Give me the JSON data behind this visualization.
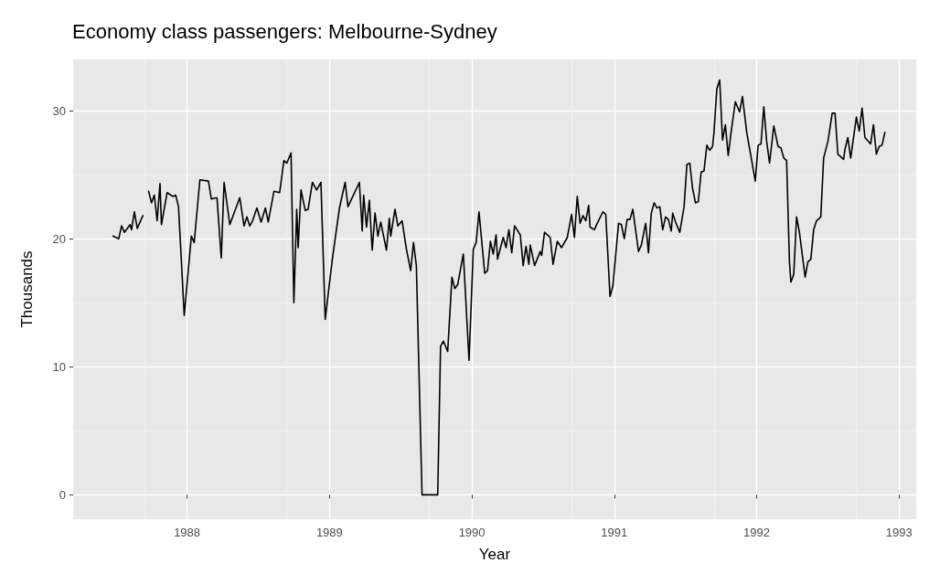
{
  "chart_data": {
    "type": "line",
    "title": "Economy class passengers: Melbourne-Sydney",
    "xlabel": "Year",
    "ylabel": "Thousands",
    "x": [
      1987.48,
      1987.52,
      1987.54,
      1987.56,
      1987.6,
      1987.61,
      1987.63,
      1987.65,
      1987.69,
      1987.71,
      1987.73,
      1987.75,
      1987.77,
      1987.79,
      1987.81,
      1987.82,
      1987.86,
      1987.9,
      1987.92,
      1987.94,
      1987.98,
      1988.03,
      1988.05,
      1988.09,
      1988.15,
      1988.17,
      1988.21,
      1988.24,
      1988.26,
      1988.3,
      1988.37,
      1988.4,
      1988.42,
      1988.44,
      1988.46,
      1988.49,
      1988.52,
      1988.55,
      1988.57,
      1988.61,
      1988.65,
      1988.68,
      1988.7,
      1988.73,
      1988.75,
      1988.77,
      1988.78,
      1988.8,
      1988.83,
      1988.85,
      1988.88,
      1988.91,
      1988.94,
      1988.97,
      1989.02,
      1989.07,
      1989.11,
      1989.13,
      1989.21,
      1989.23,
      1989.24,
      1989.26,
      1989.28,
      1989.3,
      1989.32,
      1989.34,
      1989.36,
      1989.4,
      1989.42,
      1989.43,
      1989.46,
      1989.48,
      1989.51,
      1989.54,
      1989.57,
      1989.59,
      1989.61,
      1989.65,
      1989.76,
      1989.78,
      1989.8,
      1989.83,
      1989.86,
      1989.88,
      1989.9,
      1989.94,
      1989.98,
      1990.01,
      1990.03,
      1990.05,
      1990.09,
      1990.11,
      1990.13,
      1990.15,
      1990.17,
      1990.18,
      1990.22,
      1990.24,
      1990.26,
      1990.28,
      1990.3,
      1990.34,
      1990.36,
      1990.38,
      1990.4,
      1990.41,
      1990.44,
      1990.48,
      1990.49,
      1990.51,
      1990.55,
      1990.57,
      1990.6,
      1990.63,
      1990.67,
      1990.7,
      1990.72,
      1990.74,
      1990.76,
      1990.78,
      1990.8,
      1990.82,
      1990.83,
      1990.86,
      1990.88,
      1990.92,
      1990.94,
      1990.97,
      1990.99,
      1991.03,
      1991.05,
      1991.07,
      1991.09,
      1991.11,
      1991.13,
      1991.17,
      1991.19,
      1991.22,
      1991.24,
      1991.26,
      1991.28,
      1991.3,
      1991.32,
      1991.34,
      1991.36,
      1991.38,
      1991.4,
      1991.41,
      1991.43,
      1991.46,
      1991.49,
      1991.51,
      1991.53,
      1991.55,
      1991.57,
      1991.59,
      1991.61,
      1991.63,
      1991.65,
      1991.67,
      1991.69,
      1991.7,
      1991.72,
      1991.74,
      1991.76,
      1991.78,
      1991.8,
      1991.82,
      1991.85,
      1991.88,
      1991.9,
      1991.93,
      1991.96,
      1991.99,
      1992.01,
      1992.03,
      1992.05,
      1992.07,
      1992.09,
      1992.12,
      1992.15,
      1992.17,
      1992.19,
      1992.21,
      1992.23,
      1992.24,
      1992.26,
      1992.28,
      1992.3,
      1992.34,
      1992.36,
      1992.38,
      1992.4,
      1992.42,
      1992.45,
      1992.47,
      1992.5,
      1992.51,
      1992.53,
      1992.55,
      1992.57,
      1992.61,
      1992.62,
      1992.64,
      1992.66,
      1992.7,
      1992.72,
      1992.74,
      1992.76,
      1992.8,
      1992.82,
      1992.84,
      1992.86,
      1992.88,
      1992.9
    ],
    "series": [
      {
        "color": "#000000",
        "values": [
          20.2,
          20.0,
          21.0,
          20.5,
          21.1,
          20.7,
          22.1,
          20.8,
          21.8,
          null,
          23.7,
          22.8,
          23.4,
          21.4,
          24.3,
          21.1,
          23.6,
          23.3,
          23.4,
          22.5,
          14.0,
          20.2,
          19.7,
          24.6,
          24.5,
          23.1,
          23.2,
          18.5,
          24.4,
          21.1,
          23.2,
          21.0,
          21.7,
          21.0,
          21.4,
          22.4,
          21.3,
          22.4,
          21.3,
          23.7,
          23.6,
          26.1,
          25.9,
          26.7,
          15.0,
          22.3,
          19.3,
          23.8,
          22.2,
          22.3,
          24.4,
          23.8,
          24.4,
          13.7,
          18.4,
          22.4,
          24.4,
          22.5,
          24.4,
          20.6,
          23.4,
          20.9,
          23.0,
          19.1,
          22.0,
          20.2,
          21.3,
          19.1,
          21.6,
          20.2,
          22.3,
          21.0,
          21.4,
          19.2,
          17.5,
          19.7,
          17.9,
          0,
          0,
          11.6,
          12.0,
          11.2,
          17.0,
          16.1,
          16.4,
          18.8,
          10.5,
          19.2,
          19.7,
          22.1,
          17.3,
          17.5,
          19.8,
          18.8,
          20.3,
          18.4,
          20.1,
          19.3,
          20.7,
          18.9,
          21.0,
          20.3,
          17.9,
          19.4,
          18.0,
          19.5,
          17.9,
          19.0,
          18.7,
          20.5,
          20.1,
          18.0,
          19.8,
          19.3,
          20.1,
          21.9,
          20.1,
          23.3,
          21.2,
          21.8,
          21.4,
          22.6,
          20.9,
          20.7,
          21.2,
          22.1,
          21.9,
          15.5,
          16.3,
          21.2,
          21.1,
          20.0,
          21.5,
          21.5,
          22.3,
          19.0,
          19.5,
          21.2,
          18.9,
          22.0,
          22.8,
          22.4,
          22.5,
          20.7,
          21.7,
          21.5,
          20.6,
          22.0,
          21.3,
          20.5,
          22.5,
          25.8,
          25.9,
          23.9,
          22.8,
          22.9,
          25.2,
          25.3,
          27.3,
          26.9,
          27.2,
          28.3,
          31.7,
          32.4,
          27.7,
          28.9,
          26.5,
          28.3,
          30.7,
          29.9,
          31.1,
          28.3,
          26.4,
          24.5,
          27.3,
          27.4,
          30.3,
          27.6,
          25.9,
          28.8,
          27.2,
          27.1,
          26.3,
          26.1,
          18.2,
          16.6,
          17.2,
          21.7,
          20.5,
          17.0,
          18.2,
          18.4,
          20.7,
          21.4,
          21.7,
          26.3,
          27.6,
          28.3,
          29.8,
          29.8,
          26.6,
          26.2,
          27.0,
          27.9,
          26.3,
          29.5,
          28.4,
          30.2,
          27.9,
          27.4,
          28.9,
          26.6,
          27.2,
          27.3,
          28.3
        ]
      }
    ],
    "xlim": [
      1987.2,
      1993.12
    ],
    "xticks": [
      1988,
      1989,
      1990,
      1991,
      1992,
      1993
    ],
    "ylim": [
      -1.9,
      34
    ],
    "yticks": [
      0,
      10,
      20,
      30
    ],
    "grid": true,
    "marker": "none",
    "line_style": "solid"
  }
}
